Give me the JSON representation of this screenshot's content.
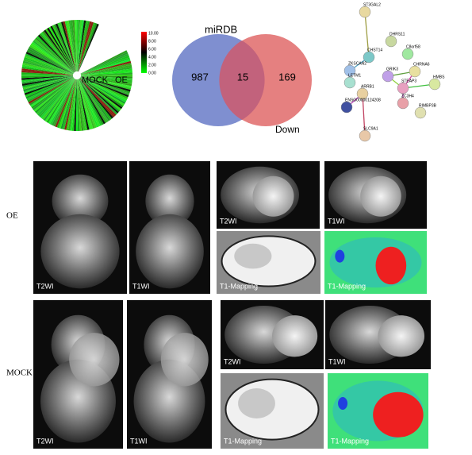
{
  "heatmap": {
    "scale_labels": [
      "10.00",
      "8.00",
      "6.00",
      "4.00",
      "2.00",
      "0.00"
    ],
    "labels": [
      "MOCK",
      "OE"
    ]
  },
  "venn": {
    "left": "miRDB",
    "right": "Down",
    "left_only": "987",
    "overlap": "15",
    "right_only": "169"
  },
  "network": {
    "nodes": [
      "ST3GAL2",
      "DHRS11",
      "CHST14",
      "C8orf58",
      "ZKSCAN2",
      "LETM1",
      "GRIK3",
      "CHRNA6",
      "HMBS",
      "ARRB1",
      "STEAP3",
      "ZC3H4",
      "ENSG00000124208",
      "RIMBP3B",
      "SLC9A1"
    ]
  },
  "mri": {
    "rows": [
      {
        "label": "OE",
        "panels": [
          "T2WI",
          "T1WI",
          "T2WI",
          "T1WI",
          "T1-Mapping",
          "T1-Mapping"
        ]
      },
      {
        "label": "MOCK",
        "panels": [
          "T2WI",
          "T1WI",
          "T2WI",
          "T1WI",
          "T1-Mapping",
          "T1-Mapping"
        ]
      }
    ]
  }
}
